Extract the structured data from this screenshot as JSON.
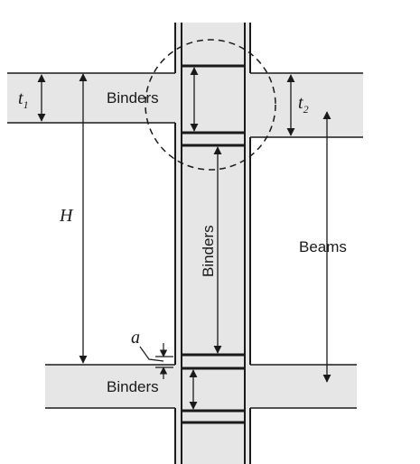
{
  "diagram": {
    "labels": {
      "binders_top": "Binders",
      "binders_column": "Binders",
      "binders_bottom": "Binders",
      "beams": "Beams",
      "H": "H",
      "t1_main": "t",
      "t1_sub": "1",
      "t2_main": "t",
      "t2_sub": "2",
      "a": "a"
    },
    "colors": {
      "fill": "#e6e6e6",
      "stroke": "#1a1a1a"
    }
  }
}
